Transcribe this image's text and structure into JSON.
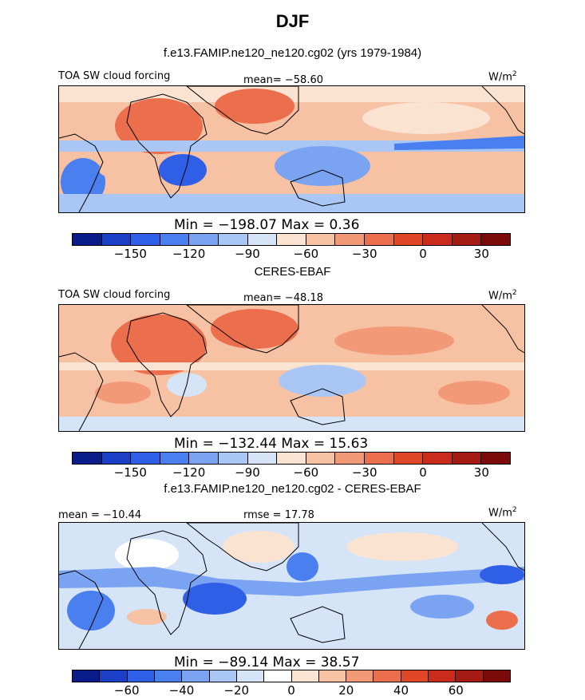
{
  "figure": {
    "title": "DJF"
  },
  "chart_data": [
    {
      "type": "heatmap",
      "title": "f.e13.FAMIP.ne120_ne120.cg02 (yrs 1979-1984)",
      "left_label": "TOA SW cloud forcing",
      "center_label": "mean= −58.60",
      "units": "W/m2",
      "units_text": "W/m",
      "units_sup": "2",
      "min_max": "Min = −198.07 Max =   0.36",
      "summary": {
        "mean": -58.6,
        "min": -198.07,
        "max": 0.36
      },
      "colorbar": {
        "colors": [
          "#0a1c8c",
          "#1c3fc8",
          "#2f5fe6",
          "#4a7ff0",
          "#7aa3f2",
          "#a9c6f5",
          "#d6e4f7",
          "#fbe3d2",
          "#f7c1a3",
          "#f29a78",
          "#eb6f4c",
          "#e04727",
          "#c92c1c",
          "#a51a12",
          "#7c0a0a"
        ],
        "ticks": [
          "−150",
          "−120",
          "−90",
          "−60",
          "−30",
          "0",
          "30"
        ],
        "tick_slots": [
          2,
          4,
          6,
          8,
          10,
          12,
          14
        ]
      }
    },
    {
      "type": "heatmap",
      "title": "CERES-EBAF",
      "left_label": "TOA SW cloud forcing",
      "center_label": "mean= −48.18",
      "units": "W/m2",
      "units_text": "W/m",
      "units_sup": "2",
      "min_max": "Min = −132.44 Max =  15.63",
      "summary": {
        "mean": -48.18,
        "min": -132.44,
        "max": 15.63
      },
      "colorbar": {
        "colors": [
          "#0a1c8c",
          "#1c3fc8",
          "#2f5fe6",
          "#4a7ff0",
          "#7aa3f2",
          "#a9c6f5",
          "#d6e4f7",
          "#fbe3d2",
          "#f7c1a3",
          "#f29a78",
          "#eb6f4c",
          "#e04727",
          "#c92c1c",
          "#a51a12",
          "#7c0a0a"
        ],
        "ticks": [
          "−150",
          "−120",
          "−90",
          "−60",
          "−30",
          "0",
          "30"
        ],
        "tick_slots": [
          2,
          4,
          6,
          8,
          10,
          12,
          14
        ]
      }
    },
    {
      "type": "heatmap",
      "title": "f.e13.FAMIP.ne120_ne120.cg02 - CERES-EBAF",
      "left_label": "mean = −10.44",
      "center_label": "rmse =  17.78",
      "units": "W/m2",
      "units_text": "W/m",
      "units_sup": "2",
      "min_max": "Min = −89.14 Max =  38.57",
      "summary": {
        "mean": -10.44,
        "rmse": 17.78,
        "min": -89.14,
        "max": 38.57
      },
      "colorbar": {
        "colors": [
          "#0a1c8c",
          "#1c3fc8",
          "#2f5fe6",
          "#4a7ff0",
          "#7aa3f2",
          "#a9c6f5",
          "#d6e4f7",
          "#ffffff",
          "#fbe3d2",
          "#f7c1a3",
          "#f29a78",
          "#eb6f4c",
          "#e04727",
          "#c92c1c",
          "#a51a12",
          "#7c0a0a"
        ],
        "ticks": [
          "−60",
          "−40",
          "−20",
          "0",
          "20",
          "40",
          "60"
        ],
        "tick_slots": [
          2,
          4,
          6,
          8,
          10,
          12,
          14
        ]
      }
    }
  ]
}
